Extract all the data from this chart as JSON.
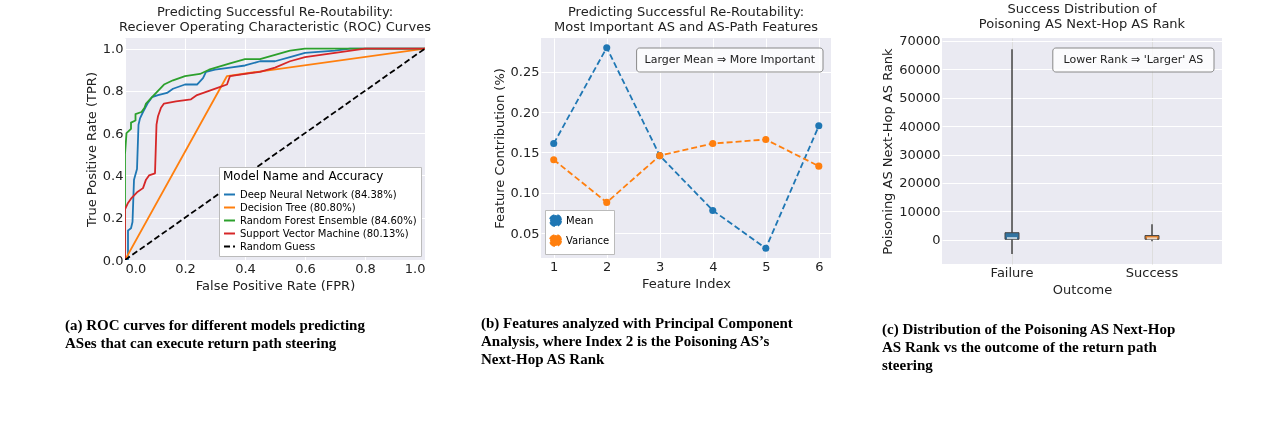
{
  "chart_data": [
    {
      "type": "line",
      "title": "Predicting Successful Re-Routability:\nReciever Operating Characteristic (ROC) Curves",
      "xlabel": "False Positive Rate (FPR)",
      "ylabel": "True Positive Rate (TPR)",
      "legend_title": "Model Name and Accuracy",
      "legend": "bottom right",
      "grid": true,
      "marker": "none",
      "xlim": [
        0,
        1
      ],
      "ylim": [
        0,
        1.05
      ],
      "xticks": [
        {
          "value": 0,
          "label": "0.0"
        },
        {
          "value": 0.2,
          "label": "0.2"
        },
        {
          "value": 0.4,
          "label": "0.4"
        },
        {
          "value": 0.6,
          "label": "0.6"
        },
        {
          "value": 0.8,
          "label": "0.8"
        },
        {
          "value": 1,
          "label": "1.0"
        }
      ],
      "yticks": [
        {
          "value": 0,
          "label": "0.0"
        },
        {
          "value": 0.2,
          "label": "0.2"
        },
        {
          "value": 0.4,
          "label": "0.4"
        },
        {
          "value": 0.6,
          "label": "0.6"
        },
        {
          "value": 0.8,
          "label": "0.8"
        },
        {
          "value": 1,
          "label": "1.0"
        }
      ],
      "series": [
        {
          "name": "Deep Neural Network (84.38%)",
          "color": "#1f77b4",
          "line_style": "solid",
          "x": [
            0,
            0.01,
            0.01,
            0.02,
            0.025,
            0.03,
            0.04,
            0.045,
            0.05,
            0.06,
            0.075,
            0.09,
            0.11,
            0.14,
            0.16,
            0.2,
            0.24,
            0.26,
            0.27,
            0.3,
            0.35,
            0.4,
            0.45,
            0.5,
            0.55,
            0.6,
            0.7,
            0.75,
            1
          ],
          "values": [
            0,
            0,
            0.14,
            0.15,
            0.18,
            0.38,
            0.43,
            0.64,
            0.67,
            0.7,
            0.74,
            0.77,
            0.78,
            0.79,
            0.81,
            0.83,
            0.83,
            0.86,
            0.89,
            0.9,
            0.91,
            0.92,
            0.94,
            0.94,
            0.96,
            0.98,
            0.99,
            1,
            1
          ]
        },
        {
          "name": "Decision Tree (80.80%)",
          "color": "#ff7f0e",
          "line_style": "solid",
          "x": [
            0,
            0.34,
            1
          ],
          "values": [
            0,
            0.87,
            1
          ]
        },
        {
          "name": "Random Forest Ensemble (84.60%)",
          "color": "#2ca02c",
          "line_style": "solid",
          "x": [
            0,
            0,
            0.005,
            0.02,
            0.02,
            0.035,
            0.035,
            0.055,
            0.065,
            0.07,
            0.09,
            0.11,
            0.13,
            0.16,
            0.2,
            0.25,
            0.28,
            0.35,
            0.4,
            0.45,
            0.5,
            0.55,
            0.6,
            0.8,
            1
          ],
          "values": [
            0,
            0.5,
            0.6,
            0.62,
            0.65,
            0.66,
            0.69,
            0.7,
            0.72,
            0.74,
            0.77,
            0.8,
            0.83,
            0.85,
            0.87,
            0.88,
            0.9,
            0.93,
            0.95,
            0.95,
            0.97,
            0.99,
            1,
            1,
            1
          ]
        },
        {
          "name": "Support Vector Machine (80.13%)",
          "color": "#d62728",
          "line_style": "solid",
          "x": [
            0,
            0,
            0.01,
            0.02,
            0.04,
            0.06,
            0.07,
            0.08,
            0.1,
            0.105,
            0.11,
            0.12,
            0.13,
            0.17,
            0.22,
            0.24,
            0.28,
            0.32,
            0.34,
            0.35,
            0.4,
            0.45,
            0.5,
            0.55,
            0.6,
            0.7,
            0.8,
            1
          ],
          "values": [
            0,
            0.24,
            0.27,
            0.29,
            0.32,
            0.34,
            0.38,
            0.4,
            0.41,
            0.64,
            0.68,
            0.72,
            0.74,
            0.75,
            0.76,
            0.78,
            0.8,
            0.82,
            0.83,
            0.87,
            0.88,
            0.89,
            0.91,
            0.94,
            0.96,
            0.98,
            1,
            1
          ]
        },
        {
          "name": "Random Guess",
          "color": "#000000",
          "line_style": "dashed",
          "x": [
            0,
            1
          ],
          "values": [
            0,
            1
          ]
        }
      ],
      "annotations": [
        "(a) ROC curves for different models predicting ASes that can execute return path steering"
      ]
    },
    {
      "type": "line",
      "title": "Predicting Successful Re-Routability:\nMost Important AS and AS-Path Features",
      "xlabel": "Feature Index",
      "ylabel": "Feature Contribution (%)",
      "legend": "bottom left",
      "grid": true,
      "marker": "circle",
      "line_style": "dashed",
      "x": [
        1,
        2,
        3,
        4,
        5,
        6
      ],
      "xlim": [
        0.76,
        6.23
      ],
      "xticks": [
        1,
        2,
        3,
        4,
        5,
        6
      ],
      "ylim": [
        0.019,
        0.292
      ],
      "yticks": [
        {
          "value": 0.05,
          "label": "0.05"
        },
        {
          "value": 0.1,
          "label": "0.10"
        },
        {
          "value": 0.15,
          "label": "0.15"
        },
        {
          "value": 0.2,
          "label": "0.20"
        },
        {
          "value": 0.25,
          "label": "0.25"
        }
      ],
      "series": [
        {
          "name": "Mean",
          "color": "#1f77b4",
          "values": [
            0.161,
            0.28,
            0.146,
            0.078,
            0.031,
            0.183
          ]
        },
        {
          "name": "Variance",
          "color": "#ff7f0e",
          "values": [
            0.141,
            0.088,
            0.146,
            0.161,
            0.166,
            0.133
          ]
        }
      ],
      "annotations": [
        "Larger Mean ⇒ More Important",
        "(b) Features analyzed with Principal Component Analysis, where Index 2 is the Poisoning AS’s Next-Hop AS Rank"
      ]
    },
    {
      "type": "box",
      "title": "Success Distribution of\nPoisoning AS Next-Hop AS Rank",
      "xlabel": "Outcome",
      "ylabel": "Poisoning AS Next-Hop AS Rank",
      "grid": true,
      "categories": [
        "Failure",
        "Success"
      ],
      "colors": [
        "#3274a1",
        "#e1812c"
      ],
      "ylim": [
        -8500,
        71000
      ],
      "yticks": [
        0,
        10000,
        20000,
        30000,
        40000,
        50000,
        60000,
        70000
      ],
      "boxes": [
        {
          "low": -5000,
          "q1": 200,
          "median": 600,
          "q3": 2500,
          "high": 67000
        },
        {
          "low": -500,
          "q1": 200,
          "median": 500,
          "q3": 1500,
          "high": 5500
        }
      ],
      "annotations": [
        "Lower Rank ⇒ 'Larger' AS",
        "(c) Distribution of the Poisoning AS Next-Hop AS Rank vs the outcome of the return path steering"
      ]
    }
  ]
}
